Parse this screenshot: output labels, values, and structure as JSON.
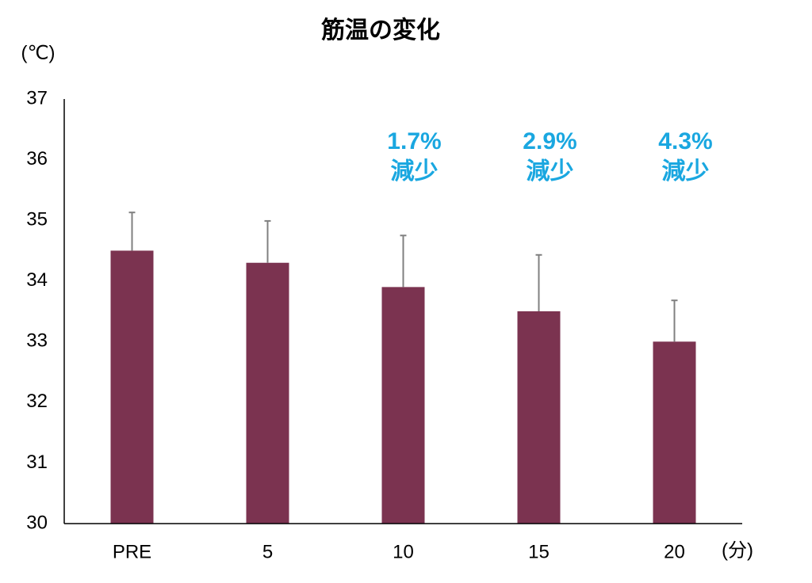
{
  "chart_data": {
    "type": "bar",
    "title": "筋温の変化",
    "y_label": "(℃)",
    "x_label": "(分)",
    "categories": [
      "PRE",
      "5",
      "10",
      "15",
      "20"
    ],
    "values": [
      34.5,
      34.3,
      33.9,
      33.5,
      33.0
    ],
    "errors": [
      0.63,
      0.69,
      0.85,
      0.93,
      0.68
    ],
    "color": "#7b3350",
    "error_color": "#808080",
    "ylim": [
      30,
      37
    ],
    "yticks": [
      30,
      31,
      32,
      33,
      34,
      35,
      36,
      37
    ],
    "grid": false,
    "annotations": [
      {
        "category": "10",
        "lines": [
          "1.7%",
          "減少"
        ]
      },
      {
        "category": "15",
        "lines": [
          "2.9%",
          "減少"
        ]
      },
      {
        "category": "20",
        "lines": [
          "4.3%",
          "減少"
        ]
      }
    ],
    "annotation_color": "#1aa7e0"
  }
}
